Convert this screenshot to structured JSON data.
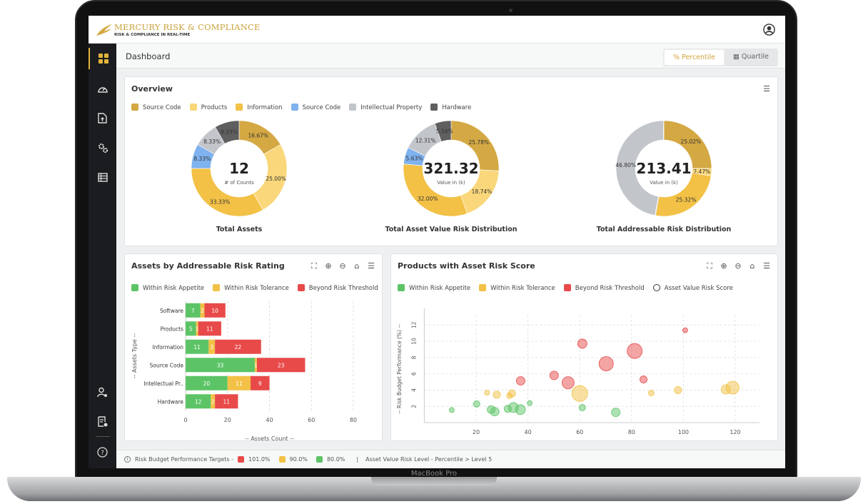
{
  "device": {
    "label": "MacBook Pro"
  },
  "app": {
    "title": "MERCURY RISK & COMPLIANCE",
    "subtitle": "RISK & COMPLIANCE IN REAL-TIME"
  },
  "sidebar": {
    "items": [
      {
        "icon": "dashboard-grid-icon",
        "active": true
      },
      {
        "icon": "gauge-icon"
      },
      {
        "icon": "file-upload-icon"
      },
      {
        "icon": "gears-icon"
      },
      {
        "icon": "table-icon"
      }
    ],
    "bottom": [
      {
        "icon": "user-settings-icon"
      },
      {
        "icon": "document-clock-icon"
      },
      {
        "icon": "help-icon"
      }
    ]
  },
  "page": {
    "title": "Dashboard",
    "toggle": [
      {
        "label": "Percentile",
        "icon": "percent-icon",
        "active": true
      },
      {
        "label": "Quartile",
        "icon": "calendar-icon",
        "active": false
      }
    ]
  },
  "colors": {
    "source_code": "#d4a843",
    "products": "#f9d77a",
    "information": "#f2c146",
    "source_code_2": "#7fb2ee",
    "ip": "#c2c5ca",
    "hardware": "#5f5f5f",
    "green": "#5cc466",
    "yellow": "#f2c146",
    "red": "#e84a4a"
  },
  "overview": {
    "title": "Overview",
    "legend": [
      "Source Code",
      "Products",
      "Information",
      "Source Code",
      "Intellectual Property",
      "Hardware"
    ]
  },
  "chart_data": [
    {
      "type": "pie",
      "variant": "donut",
      "title": "Total Assets",
      "center_value": "12",
      "center_label": "# of Counts",
      "categories": [
        "Source Code",
        "Products",
        "Information",
        "Source Code",
        "Intellectual Property",
        "Hardware"
      ],
      "values": [
        16.67,
        25.0,
        33.33,
        8.33,
        8.33,
        8.33
      ],
      "labels": [
        "16.67%",
        "25.00%",
        "33.33%",
        "8.33%",
        "8.33%",
        "8.33%"
      ]
    },
    {
      "type": "pie",
      "variant": "donut",
      "title": "Total Asset Value Risk Distribution",
      "center_value": "321.32",
      "center_label": "Value in (k)",
      "categories": [
        "Source Code",
        "Products",
        "Information",
        "Source Code",
        "Intellectual Property",
        "Hardware"
      ],
      "values": [
        25.78,
        18.74,
        32.0,
        5.63,
        12.31,
        5.54
      ],
      "labels": [
        "25.78%",
        "18.74%",
        "32.00%",
        "5.63%",
        "12.31%",
        "5.54%"
      ]
    },
    {
      "type": "pie",
      "variant": "donut",
      "title": "Total Addressable Risk Distribution",
      "center_value": "213.41",
      "center_label": "Value in (k)",
      "categories": [
        "Source Code",
        "Products",
        "Information",
        "Source Code",
        "Intellectual Property",
        "Hardware"
      ],
      "values": [
        25.02,
        2.47,
        25.32,
        0.21,
        46.8,
        0.18
      ],
      "labels": [
        "25.02%",
        "2.47%",
        "25.32%",
        "",
        "46.80%",
        ""
      ]
    },
    {
      "type": "bar",
      "orientation": "horizontal",
      "stacked": true,
      "title": "Assets by Addressable Risk Rating",
      "xlabel": "-- Assets Count --",
      "ylabel": "-- Assets Type --",
      "xlim": [
        0,
        80
      ],
      "xticks": [
        0,
        20,
        40,
        60,
        80
      ],
      "grid": true,
      "legend_position": "top-left",
      "categories": [
        "Software",
        "Products",
        "Information",
        "Source Code",
        "Intellectual Pr..",
        "Hardware"
      ],
      "series": [
        {
          "name": "Within Risk Appetite",
          "values": [
            7,
            5,
            11,
            33,
            20,
            12
          ]
        },
        {
          "name": "Within Risk Tolerance",
          "values": [
            2,
            1,
            3,
            1,
            11,
            2
          ]
        },
        {
          "name": "Beyond Risk Threshold",
          "values": [
            10,
            11,
            22,
            23,
            9,
            11
          ]
        }
      ]
    },
    {
      "type": "scatter",
      "variant": "bubble",
      "title": "Products with Asset Risk Score",
      "xlabel": "-- Addressable Risk Score --",
      "ylabel": "-- Risk Budget Performance (%) --",
      "xlim": [
        0,
        130
      ],
      "ylim": [
        0,
        13
      ],
      "xticks": [
        20,
        40,
        60,
        80,
        100,
        120
      ],
      "yticks": [
        2,
        4,
        6,
        8,
        10,
        12
      ],
      "grid": true,
      "legend_position": "top-left",
      "size_legend": "Asset Value Risk Score",
      "series": [
        {
          "name": "Within Risk Appetite",
          "points": [
            [
              10.6,
              1.55,
              3.5
            ],
            [
              20.2,
              2.3,
              4.5
            ],
            [
              25.8,
              1.6,
              5.5
            ],
            [
              27.2,
              1.35,
              6
            ],
            [
              32.2,
              1.7,
              5
            ],
            [
              34.4,
              1.85,
              7
            ],
            [
              37.1,
              1.6,
              7
            ],
            [
              40.7,
              2.4,
              3.5
            ],
            [
              61,
              1.85,
              4.5
            ],
            [
              73.9,
              1.26,
              6
            ]
          ]
        },
        {
          "name": "Within Risk Tolerance",
          "points": [
            [
              24.2,
              3.67,
              3.5
            ],
            [
              28,
              3.43,
              5
            ],
            [
              32.9,
              3.3,
              4
            ],
            [
              33.8,
              3.58,
              5
            ],
            [
              60,
              3.58,
              11
            ],
            [
              87.6,
              3.64,
              4
            ],
            [
              97.9,
              4,
              5
            ],
            [
              116.4,
              4.08,
              6.5
            ],
            [
              119,
              4.3,
              9
            ]
          ]
        },
        {
          "name": "Beyond Risk Threshold",
          "points": [
            [
              37.2,
              5.13,
              6
            ],
            [
              50.1,
              5.8,
              6
            ],
            [
              55.5,
              4.9,
              8.5
            ],
            [
              61,
              9.7,
              6.5
            ],
            [
              70.2,
              7.24,
              10
            ],
            [
              81.2,
              8.8,
              10.5
            ],
            [
              84.6,
              5.3,
              5
            ],
            [
              100.7,
              11.35,
              3.5
            ]
          ]
        }
      ]
    }
  ],
  "footer": {
    "label": "Risk Budget Performance Targets -",
    "targets": [
      "101.0%",
      "90.0%",
      "80.0%"
    ],
    "separator": "|",
    "level": "Asset Value Risk Level - Percentile > Level 5"
  }
}
